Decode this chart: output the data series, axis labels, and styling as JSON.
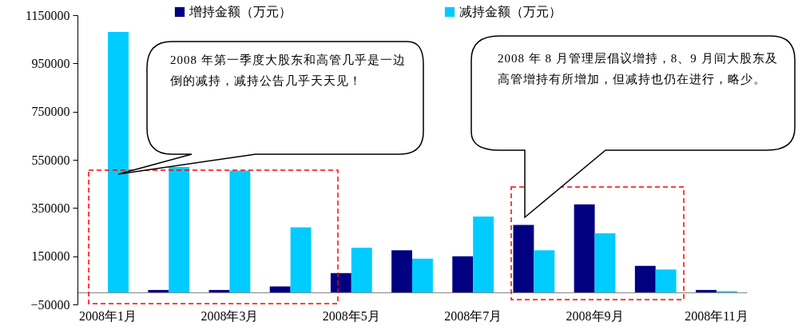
{
  "chart_data": {
    "type": "bar",
    "categories": [
      "2008年1月",
      null,
      "2008年3月",
      null,
      "2008年5月",
      null,
      "2008年7月",
      null,
      "2008年9月",
      null,
      "2008年11月"
    ],
    "series": [
      {
        "name": "增持金额（万元）",
        "color": "#000080",
        "values": [
          0,
          10000,
          10000,
          25000,
          80000,
          175000,
          150000,
          280000,
          365000,
          110000,
          10000
        ]
      },
      {
        "name": "减持金额（万元）",
        "color": "#00ccff",
        "values": [
          1080000,
          520000,
          505000,
          270000,
          185000,
          140000,
          315000,
          175000,
          245000,
          95000,
          5000
        ]
      }
    ],
    "ylim": [
      -50000,
      1150000
    ],
    "yticks": [
      -50000,
      150000,
      350000,
      550000,
      750000,
      950000,
      1150000
    ],
    "grid": false,
    "legend": "top",
    "annotations": [
      "2008 年第一季度大股东和高管几乎是一边倒的减持，减持公告几乎天天见！",
      "2008 年 8 月管理层倡议增持，8、9 月间大股东及高管增持有所增加，但减持也仍在进行，略少。"
    ]
  }
}
